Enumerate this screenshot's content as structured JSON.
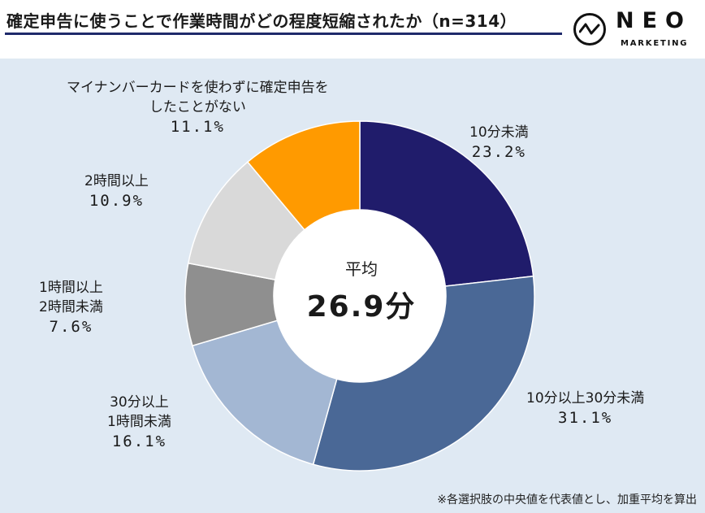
{
  "header": {
    "title": "確定申告に使うことで作業時間がどの程度短縮されたか（n=314）",
    "logo_word": "NEO",
    "logo_sub": "MARKETING"
  },
  "chart_data": {
    "type": "pie",
    "title": "確定申告に使うことで作業時間がどの程度短縮されたか（n=314）",
    "center_label": "平均",
    "center_value": "26.9分",
    "slices": [
      {
        "label": "10分未満",
        "value": 23.2,
        "pct_text": "23.2%",
        "color": "#201c6b"
      },
      {
        "label": "10分以上30分未満",
        "value": 31.1,
        "pct_text": "31.1%",
        "color": "#4a6896"
      },
      {
        "label": "30分以上\n1時間未満",
        "value": 16.1,
        "pct_text": "16.1%",
        "color": "#a3b7d3"
      },
      {
        "label": "1時間以上\n2時間未満",
        "value": 7.6,
        "pct_text": "7.6%",
        "color": "#8f8f8f"
      },
      {
        "label": "2時間以上",
        "value": 10.9,
        "pct_text": "10.9%",
        "color": "#d9d9d9"
      },
      {
        "label": "マイナンバーカードを使わずに確定申告を\nしたことがない",
        "value": 11.1,
        "pct_text": "11.1%",
        "color": "#ff9a00"
      }
    ]
  },
  "labels": {
    "s0_line1": "10分未満",
    "s0_pct": "23.2%",
    "s1_line1": "10分以上30分未満",
    "s1_pct": "31.1%",
    "s2_line1": "30分以上",
    "s2_line2": "1時間未満",
    "s2_pct": "16.1%",
    "s3_line1": "1時間以上",
    "s3_line2": "2時間未満",
    "s3_pct": "7.6%",
    "s4_line1": "2時間以上",
    "s4_pct": "10.9%",
    "s5_line1": "マイナンバーカードを使わずに確定申告を",
    "s5_line2": "したことがない",
    "s5_pct": "11.1%"
  },
  "footnote": "※各選択肢の中央値を代表値とし、加重平均を算出"
}
